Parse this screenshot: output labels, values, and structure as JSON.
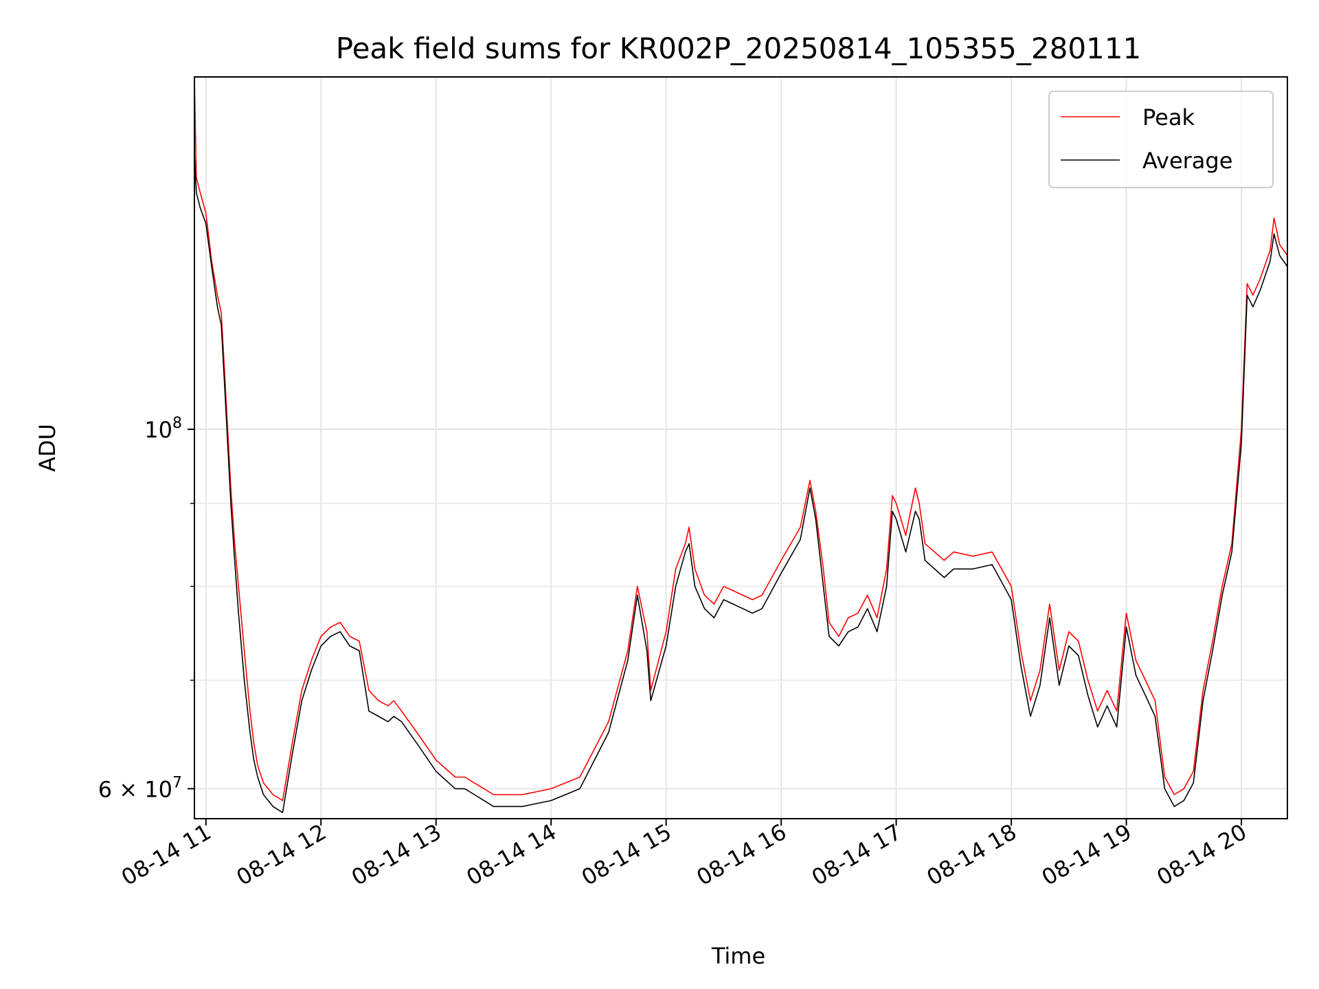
{
  "chart_data": {
    "type": "line",
    "title": "Peak field sums for KR002P_20250814_105355_280111",
    "xlabel": "Time",
    "ylabel": "ADU",
    "y_scale": "log",
    "ylim": [
      57500000,
      165000000
    ],
    "xlim": [
      "2025-08-14 10:54",
      "2025-08-14 20:24"
    ],
    "grid": true,
    "legend_position": "upper right",
    "x_tick_labels": [
      "08-14 11",
      "08-14 12",
      "08-14 13",
      "08-14 14",
      "08-14 15",
      "08-14 16",
      "08-14 17",
      "08-14 18",
      "08-14 19",
      "08-14 20"
    ],
    "x_tick_hours": [
      11,
      12,
      13,
      14,
      15,
      16,
      17,
      18,
      19,
      20
    ],
    "y_major_ticks": [
      {
        "value": 100000000,
        "base": "10",
        "exp": "8"
      },
      {
        "value": 60000000,
        "mantissa": "6",
        "base": "10",
        "exp": "7"
      }
    ],
    "y_minor_ticks": [
      70000000,
      80000000,
      90000000
    ],
    "series": [
      {
        "name": "Peak",
        "color": "#ff0000",
        "x": [
          "10:54",
          "10:55",
          "10:57",
          "11:00",
          "11:03",
          "11:06",
          "11:08",
          "11:10",
          "11:13",
          "11:15",
          "11:17",
          "11:20",
          "11:23",
          "11:25",
          "11:27",
          "11:30",
          "11:35",
          "11:40",
          "11:45",
          "11:50",
          "11:55",
          "12:00",
          "12:05",
          "12:10",
          "12:15",
          "12:20",
          "12:25",
          "12:30",
          "12:35",
          "12:38",
          "12:42",
          "12:50",
          "13:00",
          "13:10",
          "13:15",
          "13:20",
          "13:25",
          "13:30",
          "13:35",
          "13:45",
          "14:00",
          "14:15",
          "14:30",
          "14:40",
          "14:45",
          "14:50",
          "14:52",
          "15:00",
          "15:05",
          "15:10",
          "15:12",
          "15:15",
          "15:20",
          "15:25",
          "15:30",
          "15:35",
          "15:40",
          "15:45",
          "15:50",
          "16:00",
          "16:10",
          "16:15",
          "16:18",
          "16:22",
          "16:25",
          "16:30",
          "16:35",
          "16:40",
          "16:45",
          "16:50",
          "16:55",
          "16:58",
          "17:00",
          "17:05",
          "17:10",
          "17:12",
          "17:15",
          "17:20",
          "17:25",
          "17:30",
          "17:40",
          "17:50",
          "18:00",
          "18:05",
          "18:10",
          "18:15",
          "18:20",
          "18:25",
          "18:30",
          "18:35",
          "18:40",
          "18:45",
          "18:50",
          "18:55",
          "19:00",
          "19:05",
          "19:10",
          "19:15",
          "19:20",
          "19:25",
          "19:30",
          "19:35",
          "19:40",
          "19:45",
          "19:50",
          "19:55",
          "20:00",
          "20:03",
          "20:06",
          "20:10",
          "20:15",
          "20:17",
          "20:20",
          "20:24"
        ],
        "values": [
          165000000,
          143000000,
          140000000,
          136000000,
          127000000,
          121000000,
          118000000,
          107000000,
          92000000,
          85000000,
          80000000,
          73000000,
          67000000,
          64000000,
          62000000,
          60500000,
          59500000,
          59000000,
          64000000,
          69000000,
          72000000,
          74500000,
          75500000,
          76000000,
          74500000,
          74000000,
          69000000,
          68000000,
          67500000,
          68000000,
          67000000,
          65000000,
          62500000,
          61000000,
          61000000,
          60500000,
          60000000,
          59500000,
          59500000,
          59500000,
          60000000,
          61000000,
          66000000,
          73000000,
          80000000,
          75000000,
          69000000,
          75000000,
          82000000,
          85000000,
          87000000,
          82000000,
          79000000,
          78000000,
          80000000,
          79500000,
          79000000,
          78500000,
          79000000,
          83000000,
          87000000,
          93000000,
          89000000,
          82000000,
          76000000,
          74500000,
          76500000,
          77000000,
          79000000,
          76500000,
          82000000,
          91000000,
          90000000,
          86000000,
          92000000,
          90000000,
          85000000,
          84000000,
          83000000,
          84000000,
          83500000,
          84000000,
          80000000,
          73000000,
          68000000,
          71000000,
          78000000,
          71000000,
          75000000,
          74000000,
          70000000,
          67000000,
          69000000,
          67000000,
          77000000,
          72000000,
          70000000,
          68000000,
          61000000,
          59500000,
          60000000,
          61500000,
          69000000,
          74000000,
          80000000,
          85000000,
          100000000,
          123000000,
          121000000,
          124000000,
          129000000,
          135000000,
          130000000,
          128000000
        ]
      },
      {
        "name": "Average",
        "color": "#000000",
        "x": [
          "10:54",
          "10:55",
          "10:57",
          "11:00",
          "11:03",
          "11:06",
          "11:08",
          "11:10",
          "11:13",
          "11:15",
          "11:17",
          "11:20",
          "11:23",
          "11:25",
          "11:27",
          "11:30",
          "11:35",
          "11:40",
          "11:45",
          "11:50",
          "11:55",
          "12:00",
          "12:05",
          "12:10",
          "12:15",
          "12:20",
          "12:25",
          "12:30",
          "12:35",
          "12:38",
          "12:42",
          "12:50",
          "13:00",
          "13:10",
          "13:15",
          "13:20",
          "13:25",
          "13:30",
          "13:35",
          "13:45",
          "14:00",
          "14:15",
          "14:30",
          "14:40",
          "14:45",
          "14:50",
          "14:52",
          "15:00",
          "15:05",
          "15:10",
          "15:12",
          "15:15",
          "15:20",
          "15:25",
          "15:30",
          "15:35",
          "15:40",
          "15:45",
          "15:50",
          "16:00",
          "16:10",
          "16:15",
          "16:18",
          "16:22",
          "16:25",
          "16:30",
          "16:35",
          "16:40",
          "16:45",
          "16:50",
          "16:55",
          "16:58",
          "17:00",
          "17:05",
          "17:10",
          "17:12",
          "17:15",
          "17:20",
          "17:25",
          "17:30",
          "17:40",
          "17:50",
          "18:00",
          "18:05",
          "18:10",
          "18:15",
          "18:20",
          "18:25",
          "18:30",
          "18:35",
          "18:40",
          "18:45",
          "18:50",
          "18:55",
          "19:00",
          "19:05",
          "19:10",
          "19:15",
          "19:20",
          "19:25",
          "19:30",
          "19:35",
          "19:40",
          "19:45",
          "19:50",
          "19:55",
          "20:00",
          "20:03",
          "20:06",
          "20:10",
          "20:15",
          "20:17",
          "20:20",
          "20:24"
        ],
        "values": [
          148000000,
          140000000,
          137000000,
          134000000,
          126000000,
          119000000,
          116000000,
          105000000,
          90000000,
          83000000,
          77000000,
          70000000,
          65000000,
          62500000,
          61000000,
          59500000,
          58500000,
          58000000,
          63000000,
          68000000,
          71000000,
          73500000,
          74500000,
          75000000,
          73500000,
          73000000,
          67000000,
          66500000,
          66000000,
          66500000,
          66000000,
          64000000,
          61500000,
          60000000,
          60000000,
          59500000,
          59000000,
          58500000,
          58500000,
          58500000,
          59000000,
          60000000,
          65000000,
          72000000,
          79000000,
          73000000,
          68000000,
          73500000,
          80000000,
          84000000,
          85000000,
          80000000,
          77500000,
          76500000,
          78500000,
          78000000,
          77500000,
          77000000,
          77500000,
          81500000,
          85500000,
          92000000,
          88000000,
          80000000,
          74500000,
          73500000,
          75000000,
          75500000,
          77500000,
          75000000,
          80000000,
          89000000,
          88000000,
          84000000,
          89000000,
          88000000,
          83000000,
          82000000,
          81000000,
          82000000,
          82000000,
          82500000,
          78500000,
          71500000,
          66500000,
          69500000,
          76500000,
          69500000,
          73500000,
          72500000,
          68500000,
          65500000,
          67500000,
          65500000,
          75500000,
          70500000,
          68500000,
          66500000,
          60000000,
          58500000,
          59000000,
          60500000,
          68000000,
          73000000,
          79000000,
          84000000,
          98000000,
          121000000,
          119000000,
          122000000,
          127000000,
          132000000,
          128000000,
          126000000
        ]
      }
    ]
  }
}
